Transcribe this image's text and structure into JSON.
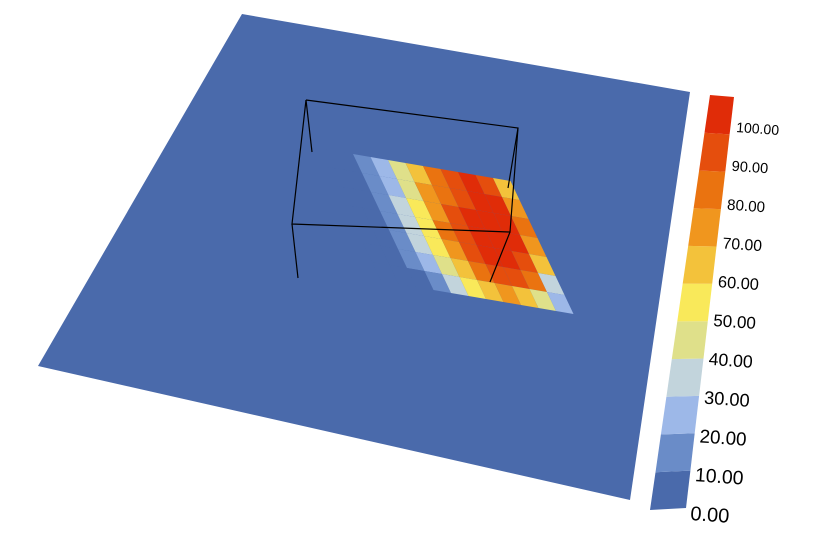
{
  "chart_data": {
    "type": "heatmap",
    "title": "",
    "xlabel": "",
    "ylabel": "",
    "zlim": [
      0,
      100
    ],
    "colorbar": {
      "ticks": [
        "0.00",
        "10.00",
        "20.00",
        "30.00",
        "40.00",
        "50.00",
        "60.00",
        "70.00",
        "80.00",
        "90.00",
        "100.00"
      ],
      "colors": [
        "#4a6aab",
        "#6a8cc8",
        "#9db8e8",
        "#c2d4dc",
        "#dfe08a",
        "#f9e95a",
        "#f3c23b",
        "#f0961e",
        "#ea7310",
        "#e54e0d",
        "#e02c08"
      ]
    },
    "plane_color": "#4a6aab",
    "grid": {
      "cols": 11,
      "rows": 7,
      "values": [
        [
          0,
          5,
          12,
          22,
          38,
          58,
          74,
          86,
          91,
          88,
          62
        ],
        [
          0,
          5,
          14,
          26,
          44,
          64,
          80,
          90,
          95,
          92,
          70
        ],
        [
          2,
          6,
          16,
          30,
          50,
          70,
          84,
          94,
          98,
          94,
          76
        ],
        [
          2,
          8,
          18,
          32,
          54,
          74,
          88,
          96,
          100,
          96,
          72
        ],
        [
          0,
          6,
          16,
          28,
          50,
          70,
          86,
          94,
          98,
          90,
          58
        ],
        [
          0,
          4,
          12,
          24,
          44,
          62,
          76,
          84,
          86,
          74,
          36
        ],
        [
          0,
          0,
          8,
          16,
          32,
          48,
          60,
          66,
          62,
          44,
          22
        ]
      ]
    }
  }
}
